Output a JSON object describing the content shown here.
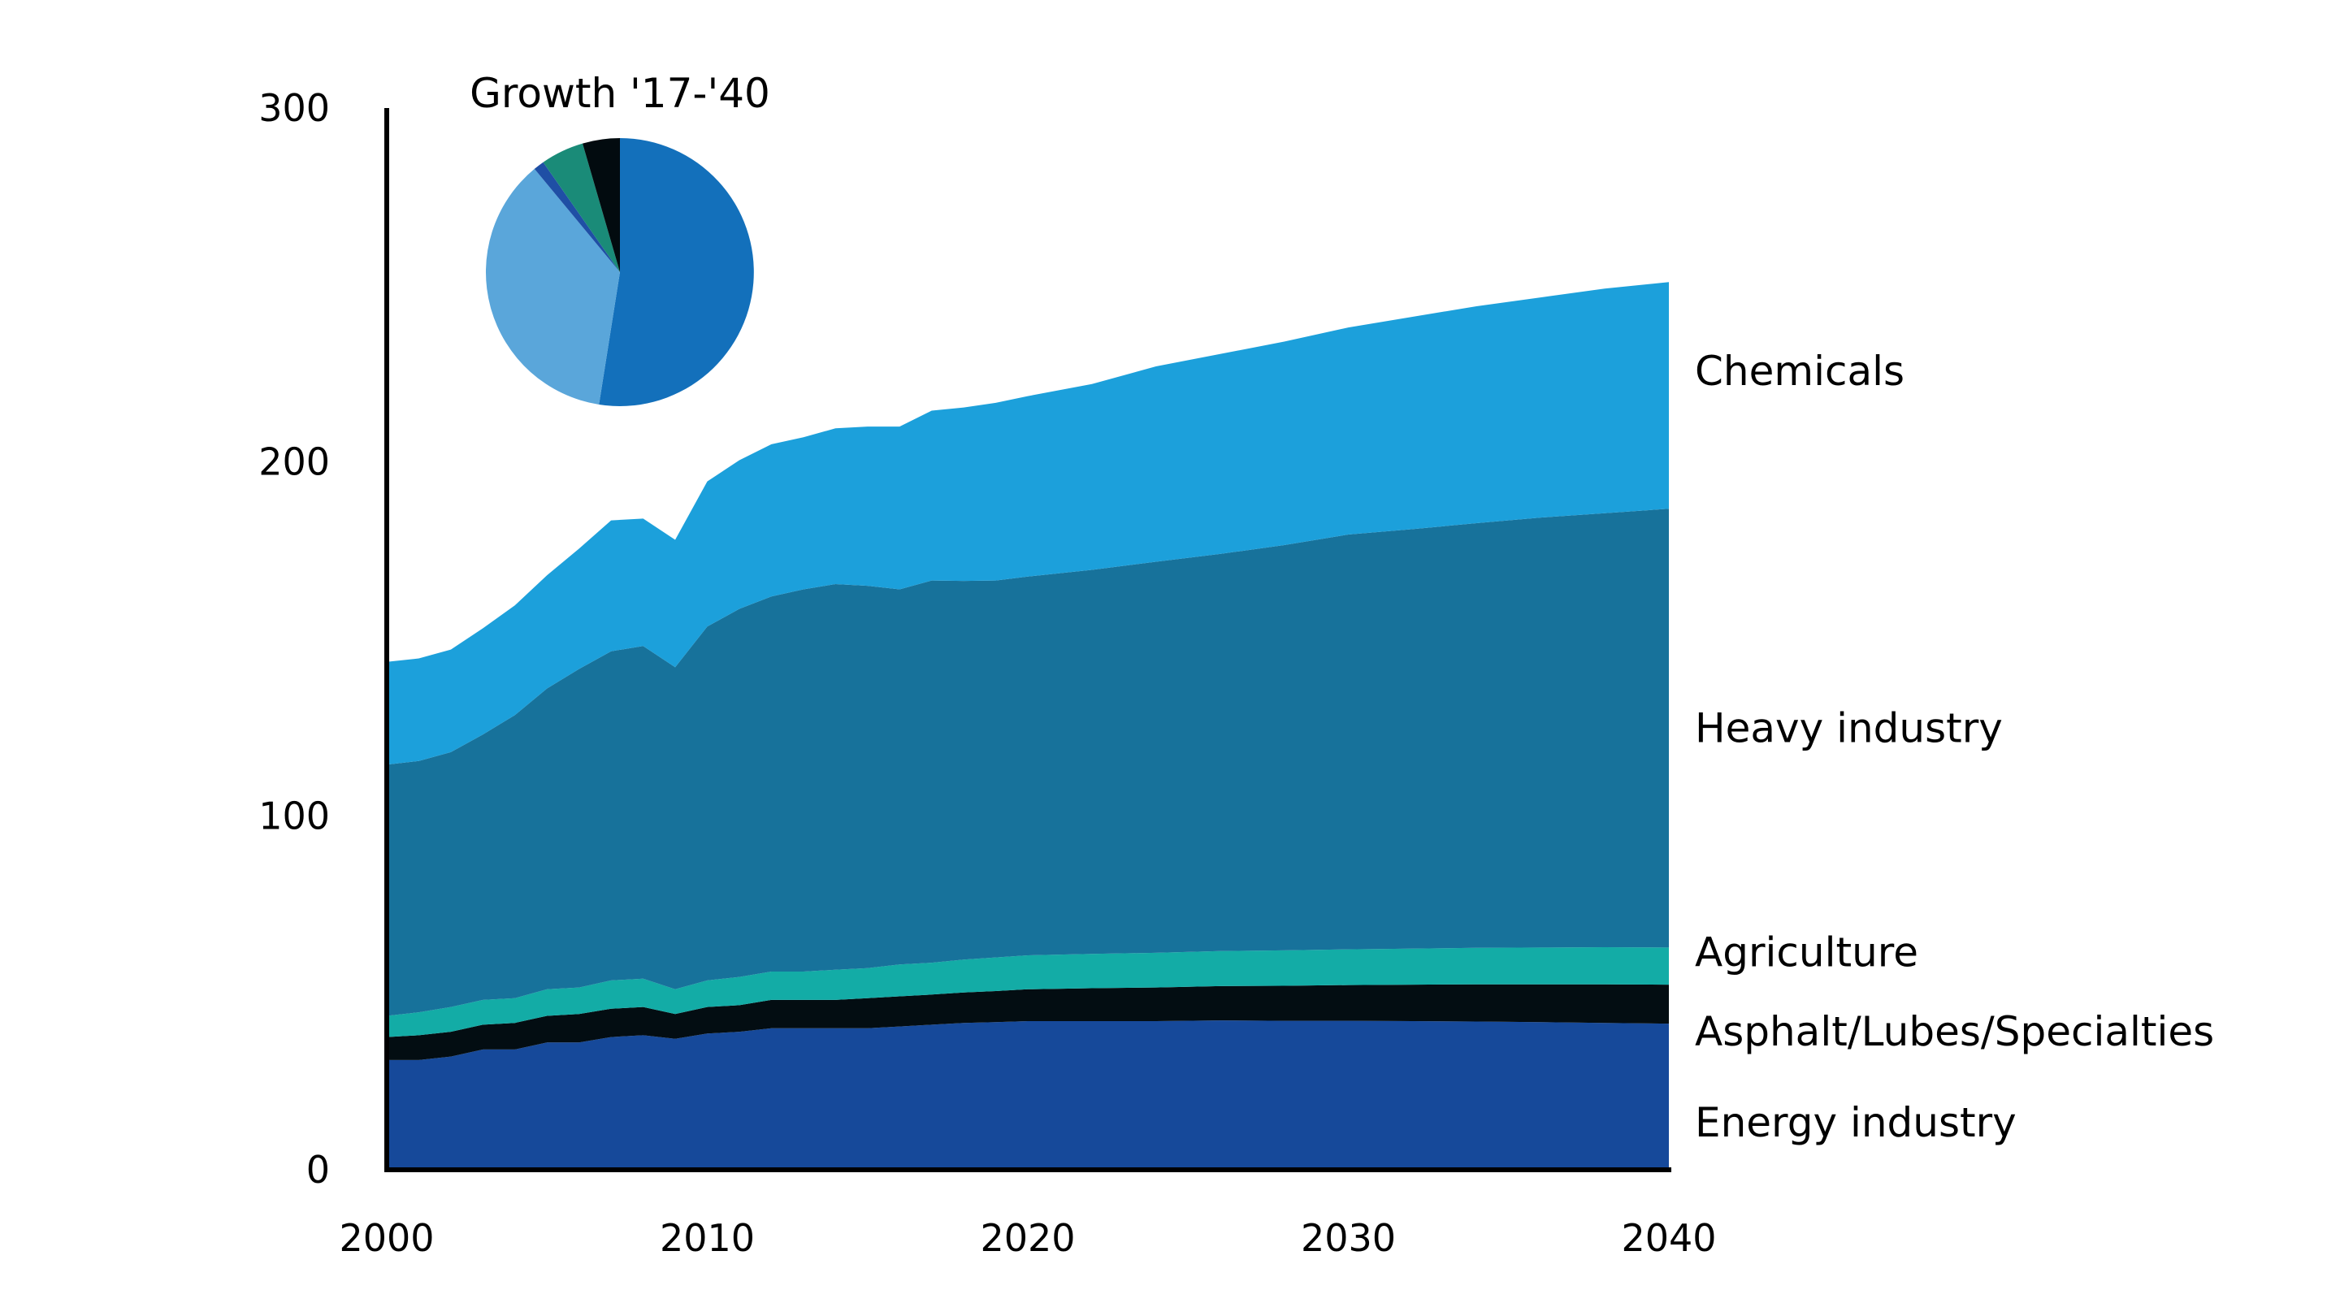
{
  "colors": {
    "energy": "#16499A",
    "asphalt": "#030D12",
    "agriculture": "#13ACA6",
    "heavy": "#17729B",
    "chemicals": "#1CA0DB",
    "pie_agriculture": "#1A8B78",
    "pie_energy": "#1F4FA5",
    "pie_asphalt": "#020B0F",
    "pie_heavy": "#5AA6DA",
    "pie_chemicals": "#1370BB"
  },
  "chart_data": {
    "type": "area",
    "stacked": true,
    "x": [
      2000,
      2001,
      2002,
      2003,
      2004,
      2005,
      2006,
      2007,
      2008,
      2009,
      2010,
      2011,
      2012,
      2013,
      2014,
      2015,
      2016,
      2017,
      2018,
      2019,
      2020,
      2022,
      2024,
      2026,
      2028,
      2030,
      2032,
      2034,
      2036,
      2038,
      2040
    ],
    "xlim": [
      2000,
      2040
    ],
    "ylim": [
      0,
      300
    ],
    "x_ticks": [
      "2000",
      "2010",
      "2020",
      "2030",
      "2040"
    ],
    "y_ticks": [
      "0",
      "100",
      "200",
      "300"
    ],
    "series": [
      {
        "name": "Energy industry",
        "key": "energy",
        "values": [
          31,
          31,
          32,
          34,
          34,
          36,
          36,
          37.5,
          38,
          37,
          38.5,
          39,
          40,
          40,
          40,
          40,
          40.5,
          41,
          41.5,
          41.7,
          42,
          42,
          42,
          42.2,
          42.1,
          42.1,
          42,
          41.9,
          41.7,
          41.5,
          41.3
        ]
      },
      {
        "name": "Asphalt/Lubes/Specialties",
        "key": "asphalt",
        "values": [
          6.5,
          7,
          7,
          7,
          7.5,
          7.5,
          8,
          8,
          8,
          7,
          7.5,
          7.5,
          8,
          8,
          8,
          8.5,
          8.5,
          8.5,
          8.6,
          8.8,
          9,
          9.3,
          9.5,
          9.7,
          9.9,
          10.1,
          10.3,
          10.5,
          10.7,
          10.9,
          11
        ]
      },
      {
        "name": "Agriculture",
        "key": "agriculture",
        "values": [
          6,
          6.5,
          7,
          7,
          7,
          7.5,
          7.5,
          8,
          8,
          7,
          7.5,
          8,
          8,
          8,
          8.5,
          8.5,
          9,
          9,
          9.3,
          9.5,
          9.6,
          9.7,
          9.8,
          9.9,
          10,
          10.1,
          10.2,
          10.3,
          10.4,
          10.5,
          10.5
        ]
      },
      {
        "name": "Heavy industry",
        "key": "heavy",
        "values": [
          71,
          71,
          72,
          75,
          80,
          85,
          90,
          93,
          94,
          91,
          100,
          104,
          106,
          108,
          109,
          108,
          106,
          108,
          107,
          106.5,
          107,
          108.5,
          110.5,
          112.2,
          114.5,
          117.2,
          118.5,
          120,
          121.5,
          122.6,
          124
        ]
      },
      {
        "name": "Chemicals",
        "key": "chemicals",
        "values": [
          29,
          29,
          29,
          30,
          31,
          32,
          34,
          37,
          36,
          36,
          41,
          42,
          43,
          43,
          44,
          45,
          46,
          48,
          49,
          50.2,
          51,
          52.5,
          55.2,
          56.5,
          57.5,
          58.5,
          60,
          61.3,
          62.2,
          63.5,
          64
        ]
      }
    ],
    "series_labels": {
      "chemicals": "Chemicals",
      "heavy": "Heavy industry",
      "agriculture": "Agriculture",
      "asphalt": "Asphalt/Lubes/Specialties",
      "energy": "Energy industry"
    },
    "inset_pie": {
      "title": "Growth '17-'40",
      "slices": [
        {
          "key": "chemicals",
          "value": 52.5
        },
        {
          "key": "heavy",
          "value": 36.5
        },
        {
          "key": "energy",
          "value": 1.3
        },
        {
          "key": "agriculture",
          "value": 5.2
        },
        {
          "key": "asphalt",
          "value": 4.5
        }
      ]
    }
  }
}
